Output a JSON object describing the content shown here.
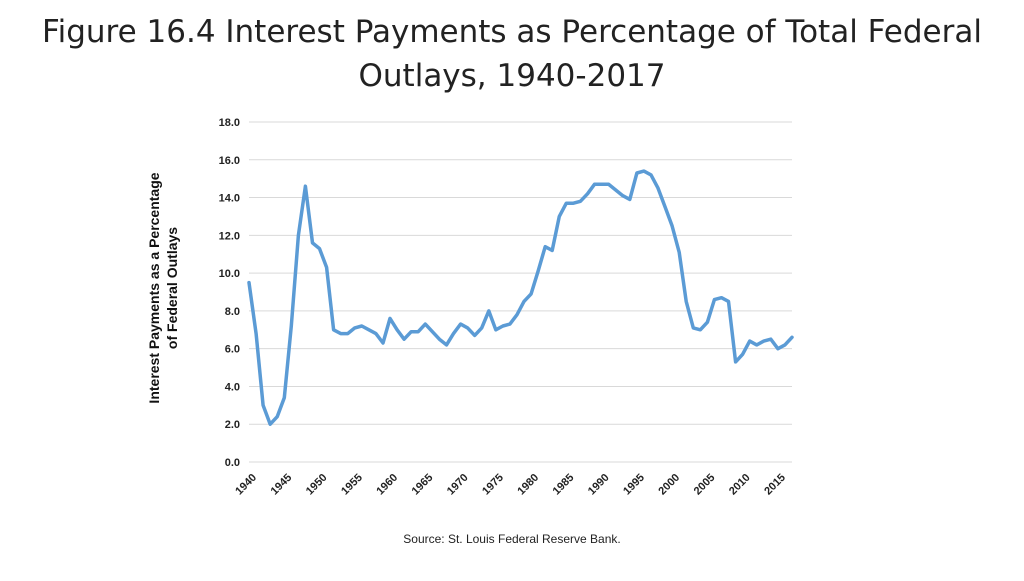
{
  "slide": {
    "title_line1": "Figure 16.4 Interest Payments as Percentage of Total Federal",
    "title_line2": "Outlays, 1940-2017",
    "source": "Source: St. Louis Federal Reserve Bank."
  },
  "chart_data": {
    "type": "line",
    "title": "",
    "xlabel": "",
    "ylabel_line1": "Interest Payments as a Percentage",
    "ylabel_line2": "of Federal Outlays",
    "ylim": [
      0,
      18
    ],
    "y_ticks": [
      "0.0",
      "2.0",
      "4.0",
      "6.0",
      "8.0",
      "10.0",
      "12.0",
      "14.0",
      "16.0",
      "18.0"
    ],
    "x_ticks": [
      "1940",
      "1945",
      "1950",
      "1955",
      "1960",
      "1965",
      "1970",
      "1975",
      "1980",
      "1985",
      "1990",
      "1995",
      "2000",
      "2005",
      "2010",
      "2015"
    ],
    "grid": true,
    "line_color": "#5b9bd5",
    "series": [
      {
        "x": [
          1940,
          1941,
          1942,
          1943,
          1944,
          1945,
          1946,
          1947,
          1948,
          1949,
          1950,
          1951,
          1952,
          1953,
          1954,
          1955,
          1956,
          1957,
          1958,
          1959,
          1960,
          1961,
          1962,
          1963,
          1964,
          1965,
          1966,
          1967,
          1968,
          1969,
          1970,
          1971,
          1972,
          1973,
          1974,
          1975,
          1976,
          1977,
          1978,
          1979,
          1980,
          1981,
          1982,
          1983,
          1984,
          1985,
          1986,
          1987,
          1988,
          1989,
          1990,
          1991,
          1992,
          1993,
          1994,
          1995,
          1996,
          1997,
          1998,
          1999,
          2000,
          2001,
          2002,
          2003,
          2004,
          2005,
          2006,
          2007,
          2008,
          2009,
          2010,
          2011,
          2012,
          2013,
          2014,
          2015,
          2016,
          2017
        ],
        "y": [
          9.5,
          6.8,
          3.0,
          2.0,
          2.4,
          3.4,
          7.2,
          12.0,
          14.6,
          11.6,
          11.3,
          10.3,
          7.0,
          6.8,
          6.8,
          7.1,
          7.2,
          7.0,
          6.8,
          6.3,
          7.6,
          7.0,
          6.5,
          6.9,
          6.9,
          7.3,
          6.9,
          6.5,
          6.2,
          6.8,
          7.3,
          7.1,
          6.7,
          7.1,
          8.0,
          7.0,
          7.2,
          7.3,
          7.8,
          8.5,
          8.9,
          10.1,
          11.4,
          11.2,
          13.0,
          13.7,
          13.7,
          13.8,
          14.2,
          14.7,
          14.7,
          14.7,
          14.4,
          14.1,
          13.9,
          15.3,
          15.4,
          15.2,
          14.5,
          13.5,
          12.5,
          11.1,
          8.5,
          7.1,
          7.0,
          7.4,
          8.6,
          8.7,
          8.5,
          5.3,
          5.7,
          6.4,
          6.2,
          6.4,
          6.5,
          6.0,
          6.2,
          6.6
        ]
      }
    ]
  }
}
